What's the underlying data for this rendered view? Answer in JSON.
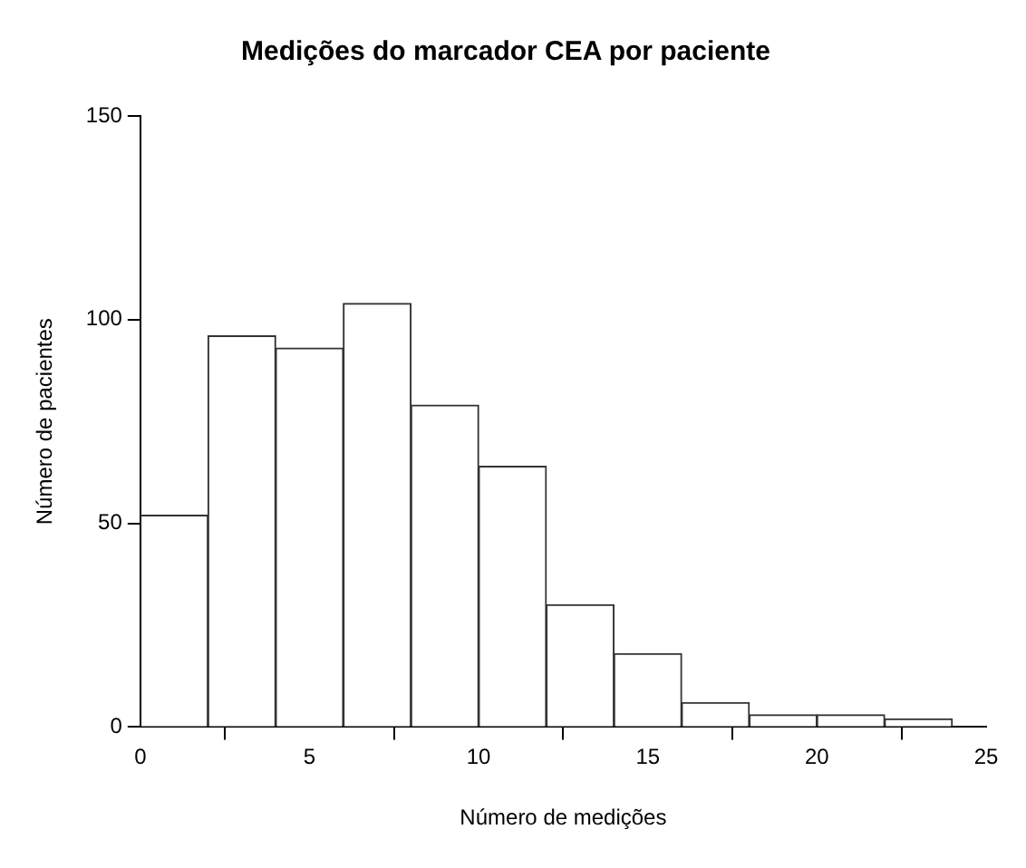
{
  "chart_data": {
    "type": "histogram",
    "title": "Medições do marcador CEA por paciente",
    "xlabel": "Número de medições",
    "ylabel": "Número de pacientes",
    "bins": [
      0,
      2,
      4,
      6,
      8,
      10,
      12,
      14,
      16,
      18,
      20,
      22,
      24
    ],
    "values": [
      52,
      96,
      93,
      104,
      79,
      64,
      30,
      18,
      6,
      3,
      3,
      2
    ],
    "color": "#ffffff",
    "xlim": [
      0,
      25
    ],
    "xticks": [
      0,
      5,
      10,
      15,
      20,
      25
    ],
    "ylim": [
      0,
      150
    ],
    "yticks": [
      0,
      50,
      100,
      150
    ],
    "grid": false,
    "legend": false
  }
}
